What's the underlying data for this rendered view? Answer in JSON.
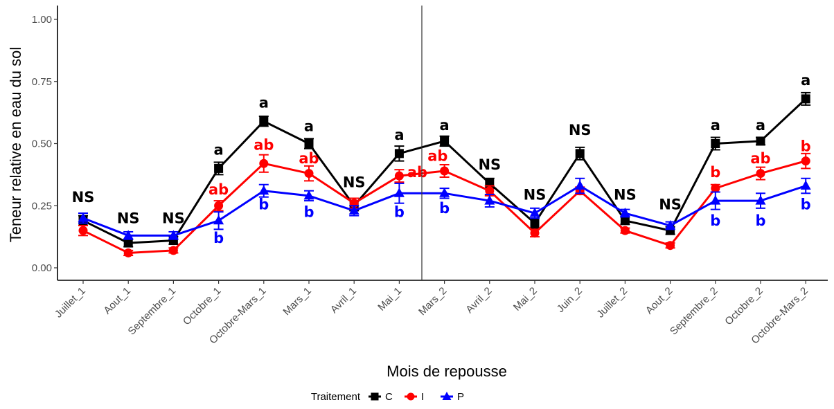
{
  "chart_data": {
    "type": "line",
    "xlabel": "Mois de repousse",
    "ylabel": "Teneur relative en eau du sol",
    "ylim": [
      0,
      1.0
    ],
    "yticks": [
      "0.00",
      "0.25",
      "0.50",
      "0.75",
      "1.00"
    ],
    "ytick_values": [
      0,
      0.25,
      0.5,
      0.75,
      1.0
    ],
    "categories": [
      "Juillet_1",
      "Aout_1",
      "Septembre_1",
      "Octobre_1",
      "Octobre-Mars_1",
      "Mars_1",
      "Avril_1",
      "Mai_1",
      "Mars_2",
      "Avril_2",
      "Mai_2",
      "Juin_2",
      "Juillet_2",
      "Aout_2",
      "Septembre_2",
      "Octobre_2",
      "Octobre-Mars_2"
    ],
    "separator_after_index": 7,
    "legend": {
      "title": "Traitement",
      "position": "bottom"
    },
    "series": [
      {
        "name": "C",
        "color": "#000000",
        "marker": "square",
        "values": [
          0.19,
          0.1,
          0.11,
          0.4,
          0.59,
          0.5,
          0.25,
          0.46,
          0.51,
          0.34,
          0.18,
          0.46,
          0.19,
          0.15,
          0.5,
          0.51,
          0.68
        ],
        "errors": [
          0.02,
          0.015,
          0.015,
          0.025,
          0.02,
          0.02,
          0.02,
          0.03,
          0.02,
          0.02,
          0.02,
          0.025,
          0.015,
          0.015,
          0.025,
          0.015,
          0.025
        ]
      },
      {
        "name": "I",
        "color": "#ff0000",
        "marker": "circle",
        "values": [
          0.15,
          0.06,
          0.07,
          0.25,
          0.42,
          0.38,
          0.26,
          0.37,
          0.39,
          0.31,
          0.14,
          0.31,
          0.15,
          0.09,
          0.32,
          0.38,
          0.43
        ],
        "errors": [
          0.02,
          0.01,
          0.01,
          0.02,
          0.035,
          0.03,
          0.02,
          0.025,
          0.025,
          0.02,
          0.015,
          0.015,
          0.01,
          0.01,
          0.015,
          0.025,
          0.03
        ]
      },
      {
        "name": "P",
        "color": "#0000ff",
        "marker": "triangle",
        "values": [
          0.2,
          0.13,
          0.13,
          0.19,
          0.31,
          0.29,
          0.23,
          0.3,
          0.3,
          0.27,
          0.22,
          0.33,
          0.22,
          0.17,
          0.27,
          0.27,
          0.33
        ],
        "errors": [
          0.02,
          0.015,
          0.015,
          0.035,
          0.025,
          0.02,
          0.02,
          0.04,
          0.02,
          0.025,
          0.02,
          0.03,
          0.015,
          0.015,
          0.035,
          0.03,
          0.03
        ]
      }
    ],
    "annotations": [
      {
        "x": 0,
        "y": 0.265,
        "text": "NS",
        "color": "#000000"
      },
      {
        "x": 1,
        "y": 0.18,
        "text": "NS",
        "color": "#000000"
      },
      {
        "x": 2,
        "y": 0.18,
        "text": "NS",
        "color": "#000000"
      },
      {
        "x": 3,
        "y": 0.455,
        "text": "a",
        "color": "#000000"
      },
      {
        "x": 3,
        "y": 0.295,
        "text": "ab",
        "color": "#ff0000"
      },
      {
        "x": 3,
        "y": 0.1,
        "text": "b",
        "color": "#0000ff"
      },
      {
        "x": 4,
        "y": 0.645,
        "text": "a",
        "color": "#000000"
      },
      {
        "x": 4,
        "y": 0.475,
        "text": "ab",
        "color": "#ff0000"
      },
      {
        "x": 4,
        "y": 0.235,
        "text": "b",
        "color": "#0000ff"
      },
      {
        "x": 5,
        "y": 0.55,
        "text": "a",
        "color": "#000000"
      },
      {
        "x": 5,
        "y": 0.42,
        "text": "ab",
        "color": "#ff0000"
      },
      {
        "x": 5,
        "y": 0.205,
        "text": "b",
        "color": "#0000ff"
      },
      {
        "x": 6,
        "y": 0.325,
        "text": "NS",
        "color": "#000000"
      },
      {
        "x": 7,
        "y": 0.515,
        "text": "a",
        "color": "#000000"
      },
      {
        "x": 7.4,
        "y": 0.365,
        "text": "ab",
        "color": "#ff0000"
      },
      {
        "x": 7,
        "y": 0.205,
        "text": "b",
        "color": "#0000ff"
      },
      {
        "x": 8,
        "y": 0.555,
        "text": "a",
        "color": "#000000"
      },
      {
        "x": 7.85,
        "y": 0.43,
        "text": "ab",
        "color": "#ff0000"
      },
      {
        "x": 8,
        "y": 0.22,
        "text": "b",
        "color": "#0000ff"
      },
      {
        "x": 9,
        "y": 0.395,
        "text": "NS",
        "color": "#000000"
      },
      {
        "x": 10,
        "y": 0.275,
        "text": "NS",
        "color": "#000000"
      },
      {
        "x": 11,
        "y": 0.535,
        "text": "NS",
        "color": "#000000"
      },
      {
        "x": 12,
        "y": 0.275,
        "text": "NS",
        "color": "#000000"
      },
      {
        "x": 13,
        "y": 0.235,
        "text": "NS",
        "color": "#000000"
      },
      {
        "x": 14,
        "y": 0.555,
        "text": "a",
        "color": "#000000"
      },
      {
        "x": 14,
        "y": 0.365,
        "text": "b",
        "color": "#ff0000"
      },
      {
        "x": 14,
        "y": 0.17,
        "text": "b",
        "color": "#0000ff"
      },
      {
        "x": 15,
        "y": 0.555,
        "text": "a",
        "color": "#000000"
      },
      {
        "x": 15,
        "y": 0.42,
        "text": "ab",
        "color": "#ff0000"
      },
      {
        "x": 15,
        "y": 0.17,
        "text": "b",
        "color": "#0000ff"
      },
      {
        "x": 16,
        "y": 0.735,
        "text": "a",
        "color": "#000000"
      },
      {
        "x": 16,
        "y": 0.47,
        "text": "b",
        "color": "#ff0000"
      },
      {
        "x": 16,
        "y": 0.235,
        "text": "b",
        "color": "#0000ff"
      }
    ]
  }
}
